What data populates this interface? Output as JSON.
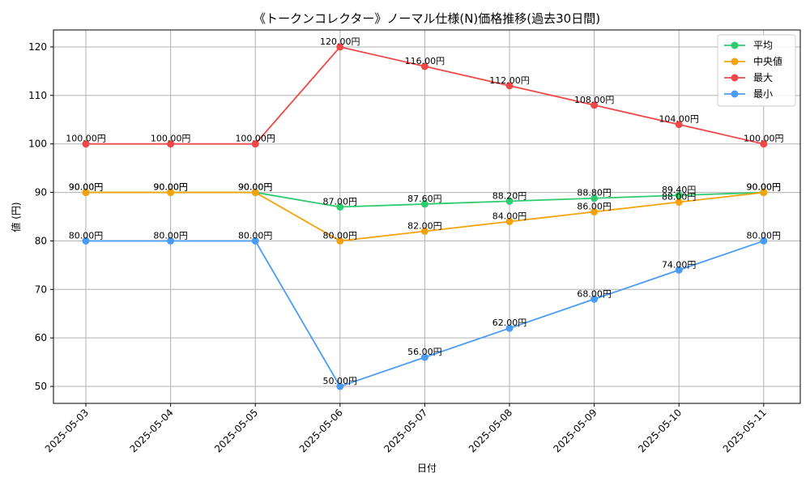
{
  "chart_data": {
    "type": "line",
    "title": "《トークンコレクター》ノーマル仕様(N)価格推移(過去30日間)",
    "xlabel": "日付",
    "ylabel": "値 (円)",
    "x": [
      "2025-05-03",
      "2025-05-04",
      "2025-05-05",
      "2025-05-06",
      "2025-05-07",
      "2025-05-08",
      "2025-05-09",
      "2025-05-10",
      "2025-05-11"
    ],
    "yticks": [
      "50",
      "60",
      "70",
      "80",
      "90",
      "100",
      "110",
      "120"
    ],
    "ylim": [
      46.5,
      123.5
    ],
    "grid": true,
    "legend_position": "top-right",
    "series": [
      {
        "name": "平均",
        "color": "#2ecc71",
        "values": [
          90,
          90,
          90,
          87,
          87.6,
          88.2,
          88.8,
          89.4,
          90
        ],
        "labels": [
          "90.00円",
          "90.00円",
          "90.00円",
          "87.00円",
          "87.60円",
          "88.20円",
          "88.80円",
          "89.40円",
          "90.00円"
        ]
      },
      {
        "name": "中央値",
        "color": "#f5a30a",
        "values": [
          90,
          90,
          90,
          80,
          82,
          84,
          86,
          88,
          90
        ],
        "labels": [
          "90.00円",
          "90.00円",
          "90.00円",
          "80.00円",
          "82.00円",
          "84.00円",
          "86.00円",
          "88.00円",
          "90.00円"
        ]
      },
      {
        "name": "最大",
        "color": "#f04848",
        "values": [
          100,
          100,
          100,
          120,
          116,
          112,
          108,
          104,
          100
        ],
        "labels": [
          "100.00円",
          "100.00円",
          "100.00円",
          "120.00円",
          "116.00円",
          "112.00円",
          "108.00円",
          "104.00円",
          "100.00円"
        ]
      },
      {
        "name": "最小",
        "color": "#4a9bf5",
        "values": [
          80,
          80,
          80,
          50,
          56,
          62,
          68,
          74,
          80
        ],
        "labels": [
          "80.00円",
          "80.00円",
          "80.00円",
          "50.00円",
          "56.00円",
          "62.00円",
          "68.00円",
          "74.00円",
          "80.00円"
        ]
      }
    ]
  }
}
